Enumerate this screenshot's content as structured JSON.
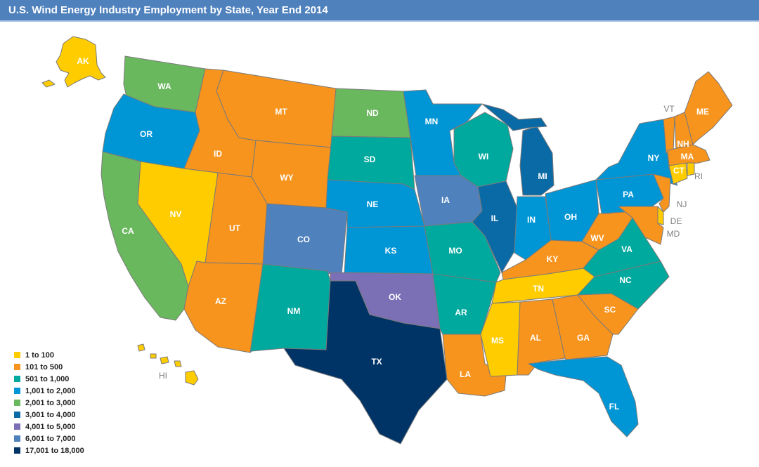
{
  "title": "U.S. Wind Energy Industry Employment by State, Year End 2014",
  "legend": [
    {
      "label": "1 to 100",
      "color": "#ffcc00"
    },
    {
      "label": "101 to 500",
      "color": "#f7941d"
    },
    {
      "label": "501 to 1,000",
      "color": "#00a99d"
    },
    {
      "label": "1,001 to 2,000",
      "color": "#0096d6"
    },
    {
      "label": "2,001 to 3,000",
      "color": "#6ab85d"
    },
    {
      "label": "3,001 to 4,000",
      "color": "#0a6aa6"
    },
    {
      "label": "4,001 to 5,000",
      "color": "#7b6fb5"
    },
    {
      "label": "6,001 to 7,000",
      "color": "#4f81bd"
    },
    {
      "label": "17,001 to 18,000",
      "color": "#003366"
    }
  ],
  "states": [
    {
      "abbr": "AK",
      "bin": 0
    },
    {
      "abbr": "HI",
      "bin": 0
    },
    {
      "abbr": "WA",
      "bin": 4
    },
    {
      "abbr": "OR",
      "bin": 3
    },
    {
      "abbr": "CA",
      "bin": 4
    },
    {
      "abbr": "NV",
      "bin": 0
    },
    {
      "abbr": "ID",
      "bin": 1
    },
    {
      "abbr": "MT",
      "bin": 1
    },
    {
      "abbr": "WY",
      "bin": 1
    },
    {
      "abbr": "UT",
      "bin": 1
    },
    {
      "abbr": "AZ",
      "bin": 1
    },
    {
      "abbr": "CO",
      "bin": 7
    },
    {
      "abbr": "NM",
      "bin": 2
    },
    {
      "abbr": "ND",
      "bin": 4
    },
    {
      "abbr": "SD",
      "bin": 2
    },
    {
      "abbr": "NE",
      "bin": 3
    },
    {
      "abbr": "KS",
      "bin": 3
    },
    {
      "abbr": "OK",
      "bin": 6
    },
    {
      "abbr": "TX",
      "bin": 8
    },
    {
      "abbr": "MN",
      "bin": 3
    },
    {
      "abbr": "IA",
      "bin": 7
    },
    {
      "abbr": "MO",
      "bin": 2
    },
    {
      "abbr": "AR",
      "bin": 2
    },
    {
      "abbr": "LA",
      "bin": 1
    },
    {
      "abbr": "WI",
      "bin": 2
    },
    {
      "abbr": "IL",
      "bin": 5
    },
    {
      "abbr": "MI",
      "bin": 5
    },
    {
      "abbr": "IN",
      "bin": 3
    },
    {
      "abbr": "OH",
      "bin": 3
    },
    {
      "abbr": "KY",
      "bin": 1
    },
    {
      "abbr": "TN",
      "bin": 0
    },
    {
      "abbr": "MS",
      "bin": 0
    },
    {
      "abbr": "AL",
      "bin": 1
    },
    {
      "abbr": "GA",
      "bin": 1
    },
    {
      "abbr": "FL",
      "bin": 3
    },
    {
      "abbr": "SC",
      "bin": 1
    },
    {
      "abbr": "NC",
      "bin": 2
    },
    {
      "abbr": "VA",
      "bin": 2
    },
    {
      "abbr": "WV",
      "bin": 1
    },
    {
      "abbr": "PA",
      "bin": 3
    },
    {
      "abbr": "NY",
      "bin": 3
    },
    {
      "abbr": "ME",
      "bin": 1
    },
    {
      "abbr": "VT",
      "bin": 1
    },
    {
      "abbr": "NH",
      "bin": 1
    },
    {
      "abbr": "MA",
      "bin": 1
    },
    {
      "abbr": "RI",
      "bin": 0
    },
    {
      "abbr": "CT",
      "bin": 0
    },
    {
      "abbr": "NJ",
      "bin": 1
    },
    {
      "abbr": "DE",
      "bin": 0
    },
    {
      "abbr": "MD",
      "bin": 1
    }
  ]
}
